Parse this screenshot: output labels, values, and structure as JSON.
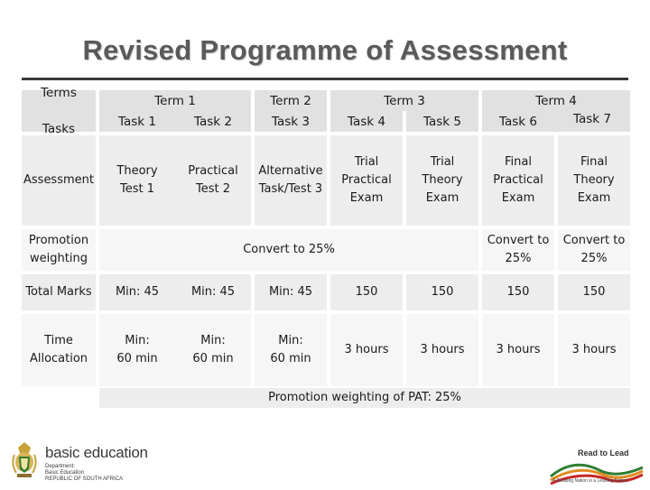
{
  "page": {
    "title": "Revised Programme of Assessment"
  },
  "table": {
    "row_headers": {
      "terms": "Terms",
      "tasks": "Tasks",
      "assessment": "Assessment",
      "promotion": "Promotion\nweighting",
      "total": "Total Marks",
      "time": "Time\nAllocation"
    },
    "terms": [
      "Term 1",
      "Term 2",
      "Term 3",
      "Term 4"
    ],
    "tasks": [
      "Task 1",
      "Task 2",
      "Task 3",
      "Task 4",
      "Task 5",
      "Task 6",
      "Task 7"
    ],
    "assessment": [
      "Theory\nTest 1",
      "Practical\nTest 2",
      "Alternative\nTask/Test 3",
      "Trial\nPractical\nExam",
      "Trial\nTheory\nExam",
      "Final\nPractical\nExam",
      "Final\nTheory\nExam"
    ],
    "promotion_merged": "Convert to 25%",
    "promotion_term4": [
      "Convert to\n25%",
      "Convert to\n25%"
    ],
    "total_marks": [
      "Min: 45",
      "Min: 45",
      "Min: 45",
      "150",
      "150",
      "150",
      "150"
    ],
    "time": [
      "Min:\n60 min",
      "Min:\n60 min",
      "Min:\n60 min",
      "3 hours",
      "3 hours",
      "3 hours",
      "3 hours"
    ],
    "pat_note": "Promotion weighting of PAT:  25%"
  },
  "footer": {
    "logo_name": "basic education",
    "logo_sub": "Department:\nBasic Education\nREPUBLIC OF SOUTH AFRICA",
    "right_logo": "Read to Lead",
    "right_tag": "A Reading Nation is a Leading Nation",
    "colors": {
      "accent_green": "#2e7d32",
      "accent_orange": "#e08a1e",
      "accent_red": "#c62828"
    }
  }
}
